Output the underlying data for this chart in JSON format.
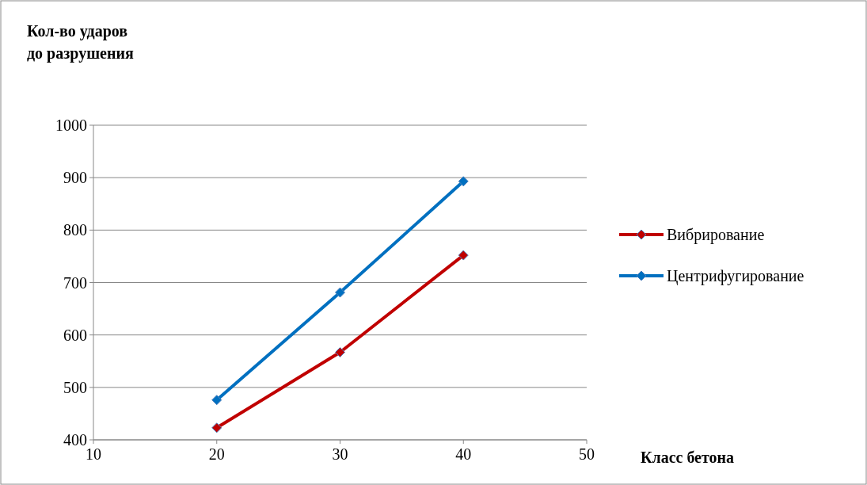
{
  "chart_data": {
    "type": "line",
    "xlabel": "Класс бетона",
    "ylabel": "Кол-во ударов\nдо разрушения",
    "x": [
      20,
      30,
      40
    ],
    "series": [
      {
        "name": "Вибрирование",
        "color": "#c00000",
        "values": [
          423,
          567,
          752
        ]
      },
      {
        "name": "Центрифугирование",
        "color": "#0070c0",
        "values": [
          476,
          681,
          893
        ]
      }
    ],
    "xlim": [
      10,
      50
    ],
    "xticks": [
      10,
      20,
      30,
      40,
      50
    ],
    "ylim": [
      400,
      1000
    ],
    "yticks": [
      400,
      500,
      600,
      700,
      800,
      900,
      1000
    ],
    "grid": "y",
    "legend": "right",
    "marker": "diamond",
    "line_style": "solid"
  }
}
